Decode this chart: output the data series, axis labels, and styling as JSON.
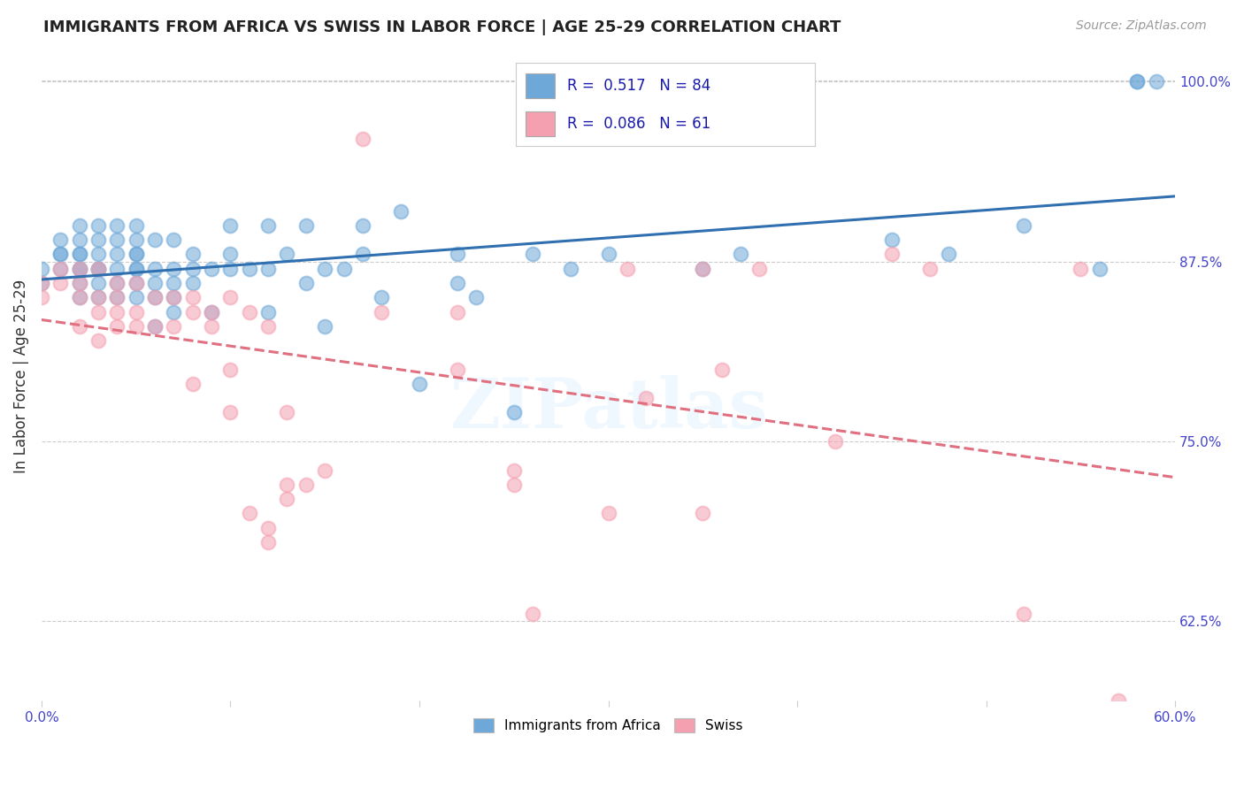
{
  "title": "IMMIGRANTS FROM AFRICA VS SWISS IN LABOR FORCE | AGE 25-29 CORRELATION CHART",
  "source": "Source: ZipAtlas.com",
  "ylabel": "In Labor Force | Age 25-29",
  "xlim": [
    0.0,
    0.6
  ],
  "ylim": [
    0.57,
    1.02
  ],
  "yticks_right": [
    1.0,
    0.875,
    0.75,
    0.625
  ],
  "ytick_labels_right": [
    "100.0%",
    "87.5%",
    "75.0%",
    "62.5%"
  ],
  "blue_R": 0.517,
  "blue_N": 84,
  "pink_R": 0.086,
  "pink_N": 61,
  "blue_color": "#6ea8d8",
  "pink_color": "#f4a0b0",
  "trend_blue_color": "#3070b0",
  "trend_pink_color": "#e07080",
  "background_color": "#ffffff",
  "blue_points_x": [
    0.0,
    0.0,
    0.01,
    0.01,
    0.01,
    0.01,
    0.02,
    0.02,
    0.02,
    0.02,
    0.02,
    0.02,
    0.02,
    0.02,
    0.03,
    0.03,
    0.03,
    0.03,
    0.03,
    0.03,
    0.03,
    0.04,
    0.04,
    0.04,
    0.04,
    0.04,
    0.04,
    0.05,
    0.05,
    0.05,
    0.05,
    0.05,
    0.05,
    0.05,
    0.05,
    0.06,
    0.06,
    0.06,
    0.06,
    0.06,
    0.07,
    0.07,
    0.07,
    0.07,
    0.07,
    0.08,
    0.08,
    0.08,
    0.09,
    0.09,
    0.1,
    0.1,
    0.1,
    0.11,
    0.12,
    0.12,
    0.12,
    0.13,
    0.14,
    0.14,
    0.15,
    0.15,
    0.16,
    0.17,
    0.17,
    0.18,
    0.19,
    0.2,
    0.22,
    0.22,
    0.23,
    0.25,
    0.26,
    0.28,
    0.3,
    0.35,
    0.37,
    0.45,
    0.48,
    0.52,
    0.56,
    0.58,
    0.58,
    0.59
  ],
  "blue_points_y": [
    0.86,
    0.87,
    0.87,
    0.88,
    0.88,
    0.89,
    0.85,
    0.86,
    0.87,
    0.87,
    0.88,
    0.88,
    0.89,
    0.9,
    0.85,
    0.86,
    0.87,
    0.87,
    0.88,
    0.89,
    0.9,
    0.85,
    0.86,
    0.87,
    0.88,
    0.89,
    0.9,
    0.85,
    0.86,
    0.87,
    0.87,
    0.88,
    0.88,
    0.89,
    0.9,
    0.83,
    0.85,
    0.86,
    0.87,
    0.89,
    0.84,
    0.85,
    0.86,
    0.87,
    0.89,
    0.86,
    0.87,
    0.88,
    0.84,
    0.87,
    0.87,
    0.88,
    0.9,
    0.87,
    0.84,
    0.87,
    0.9,
    0.88,
    0.86,
    0.9,
    0.83,
    0.87,
    0.87,
    0.88,
    0.9,
    0.85,
    0.91,
    0.79,
    0.86,
    0.88,
    0.85,
    0.77,
    0.88,
    0.87,
    0.88,
    0.87,
    0.88,
    0.89,
    0.88,
    0.9,
    0.87,
    1.0,
    1.0,
    1.0
  ],
  "pink_points_x": [
    0.0,
    0.0,
    0.01,
    0.01,
    0.02,
    0.02,
    0.02,
    0.02,
    0.03,
    0.03,
    0.03,
    0.03,
    0.04,
    0.04,
    0.04,
    0.04,
    0.05,
    0.05,
    0.05,
    0.06,
    0.06,
    0.07,
    0.07,
    0.08,
    0.08,
    0.08,
    0.09,
    0.09,
    0.1,
    0.1,
    0.1,
    0.11,
    0.11,
    0.12,
    0.12,
    0.12,
    0.13,
    0.13,
    0.13,
    0.14,
    0.15,
    0.17,
    0.18,
    0.22,
    0.22,
    0.25,
    0.25,
    0.26,
    0.3,
    0.31,
    0.32,
    0.35,
    0.35,
    0.36,
    0.38,
    0.42,
    0.45,
    0.47,
    0.52,
    0.55,
    0.57
  ],
  "pink_points_y": [
    0.85,
    0.86,
    0.86,
    0.87,
    0.83,
    0.85,
    0.86,
    0.87,
    0.82,
    0.84,
    0.85,
    0.87,
    0.83,
    0.84,
    0.85,
    0.86,
    0.83,
    0.84,
    0.86,
    0.83,
    0.85,
    0.83,
    0.85,
    0.79,
    0.84,
    0.85,
    0.83,
    0.84,
    0.77,
    0.8,
    0.85,
    0.7,
    0.84,
    0.68,
    0.69,
    0.83,
    0.71,
    0.72,
    0.77,
    0.72,
    0.73,
    0.96,
    0.84,
    0.8,
    0.84,
    0.72,
    0.73,
    0.63,
    0.7,
    0.87,
    0.78,
    0.7,
    0.87,
    0.8,
    0.87,
    0.75,
    0.88,
    0.87,
    0.63,
    0.87,
    0.57
  ]
}
